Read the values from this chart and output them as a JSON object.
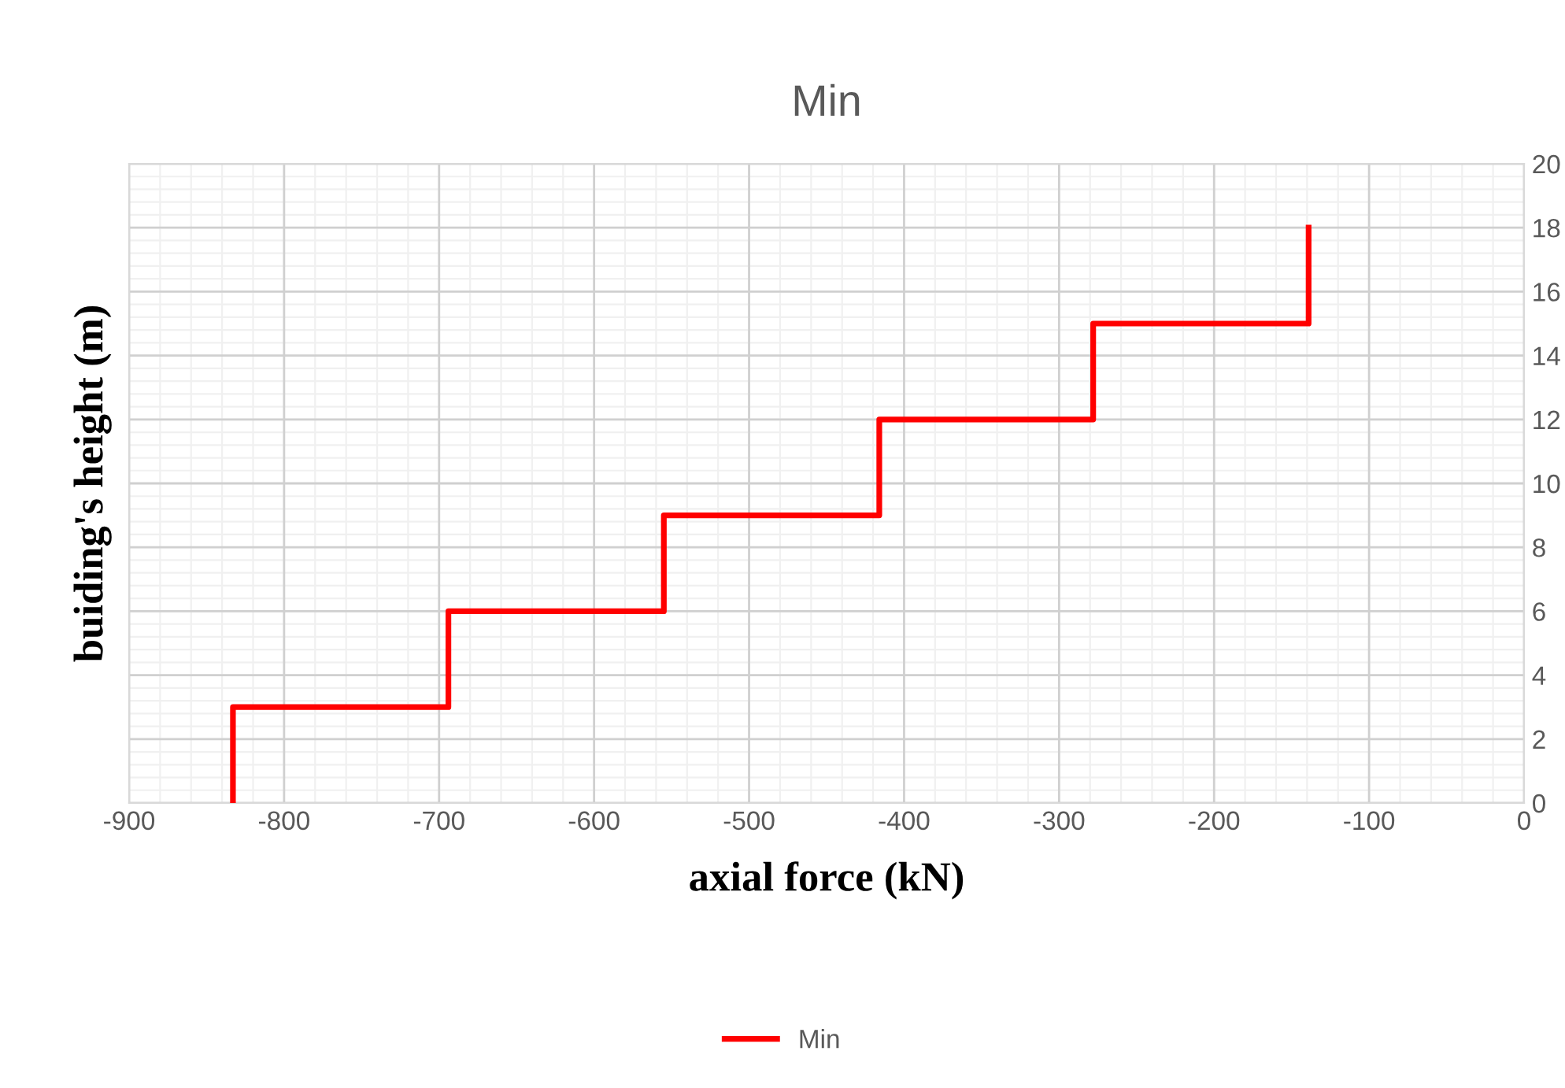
{
  "chart_data": {
    "type": "line",
    "title": "Min",
    "xlabel": "axial force (kN)",
    "ylabel": "buiding's height (m)",
    "series": [
      {
        "name": "Min",
        "color": "#ff0000",
        "x": [
          -833,
          -833,
          -694,
          -694,
          -555,
          -555,
          -416,
          -416,
          -278,
          -278,
          -139,
          -139
        ],
        "values": [
          0,
          3,
          3,
          6,
          6,
          9,
          9,
          12,
          12,
          15,
          15,
          18
        ]
      }
    ],
    "xlim": [
      -900,
      0
    ],
    "xticks": [
      -900,
      -800,
      -700,
      -600,
      -500,
      -400,
      -300,
      -200,
      -100,
      0
    ],
    "ylim": [
      0,
      20
    ],
    "yticks": [
      0,
      2,
      4,
      6,
      8,
      10,
      12,
      14,
      16,
      18,
      20
    ],
    "grid": true,
    "legend": "bottom",
    "marker": "none",
    "line_style": "solid"
  }
}
